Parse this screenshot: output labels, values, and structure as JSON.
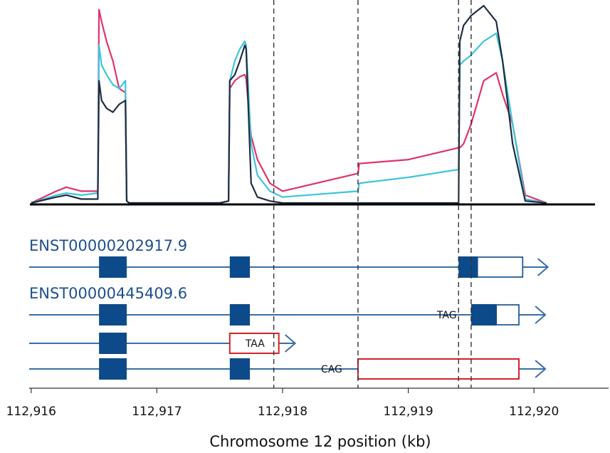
{
  "chart_data": {
    "type": "line",
    "xlabel": "Chromosome 12 position (kb)",
    "xlim": [
      112915.99,
      112920.48
    ],
    "ylim": [
      0,
      100
    ],
    "x_ticks": [
      "112,916",
      "112,917",
      "112,918",
      "112,919",
      "112,920"
    ],
    "x_tick_values": [
      112916,
      112917,
      112918,
      112919,
      112920
    ],
    "colors": {
      "series1": "#1e2d40",
      "series2": "#3ec4dc",
      "series3": "#e0336a",
      "gene": "#3a6ea5",
      "exon": "#0d4a8a",
      "orf": "#d2232a"
    },
    "series": [
      {
        "x": [
          112916,
          112916.2,
          112916.28,
          112916.4,
          112916.53,
          112916.54,
          112916.56,
          112916.6,
          112916.65,
          112916.7,
          112916.75,
          112916.76,
          112916.78,
          112917.5,
          112917.57,
          112917.58,
          112917.62,
          112917.66,
          112917.7,
          112917.71,
          112917.75,
          112917.8,
          112917.9,
          112918,
          112918.6,
          112918.61,
          112919,
          112919.4,
          112919.41,
          112919.44,
          112919.5,
          112919.6,
          112919.7,
          112919.75,
          112919.83,
          112919.93,
          112920.1
        ],
        "y": [
          0,
          3,
          4,
          2,
          2,
          62,
          52,
          48,
          46,
          50,
          52,
          1,
          0,
          0,
          1,
          62,
          65,
          72,
          80,
          78,
          10,
          3,
          1,
          0,
          0,
          0,
          0,
          0,
          82,
          90,
          95,
          100,
          92,
          72,
          30,
          1,
          0
        ]
      },
      {
        "x": [
          112916,
          112916.2,
          112916.28,
          112916.4,
          112916.53,
          112916.54,
          112916.56,
          112916.6,
          112916.65,
          112916.7,
          112916.75,
          112916.76,
          112916.78,
          112917.5,
          112917.57,
          112917.58,
          112917.62,
          112917.66,
          112917.7,
          112917.71,
          112917.75,
          112917.8,
          112917.9,
          112918,
          112918.6,
          112918.61,
          112919,
          112919.4,
          112919.41,
          112919.44,
          112919.5,
          112919.6,
          112919.7,
          112919.75,
          112919.83,
          112919.93,
          112920.1
        ],
        "y": [
          0,
          4,
          5,
          4,
          5,
          80,
          70,
          65,
          60,
          58,
          62,
          1,
          0,
          0,
          1,
          62,
          72,
          78,
          82,
          80,
          30,
          14,
          6,
          3,
          6,
          10,
          13,
          17,
          70,
          72,
          75,
          82,
          86,
          72,
          40,
          2,
          0
        ]
      },
      {
        "x": [
          112916,
          112916.2,
          112916.28,
          112916.4,
          112916.53,
          112916.54,
          112916.56,
          112916.6,
          112916.65,
          112916.7,
          112916.75,
          112916.76,
          112916.78,
          112917.5,
          112917.57,
          112917.58,
          112917.62,
          112917.66,
          112917.7,
          112917.71,
          112917.75,
          112917.8,
          112917.9,
          112918,
          112918.6,
          112918.61,
          112919,
          112919.4,
          112919.41,
          112919.44,
          112919.5,
          112919.6,
          112919.7,
          112919.75,
          112919.83,
          112919.93,
          112920.1
        ],
        "y": [
          0,
          6,
          8,
          6,
          6,
          98,
          92,
          82,
          72,
          58,
          56,
          1,
          0,
          0,
          1,
          58,
          62,
          64,
          65,
          63,
          34,
          22,
          10,
          6,
          15,
          20,
          22,
          28,
          28,
          30,
          40,
          62,
          66,
          55,
          40,
          4,
          0
        ]
      }
    ],
    "cut_lines": [
      112917.93,
      112918.6,
      112919.4,
      112919.5
    ],
    "tracks": [
      {
        "name": "ENST00000202917.9",
        "label": "",
        "line_end": 112920.11,
        "arrow": true,
        "exons": [
          [
            112916.54,
            112916.76
          ],
          [
            112917.58,
            112917.74
          ],
          [
            112919.4,
            112919.55
          ]
        ],
        "utr": [
          [
            112919.55,
            112919.91
          ]
        ],
        "orf_box": null
      },
      {
        "name": "ENST00000445409.6",
        "label": "TAG",
        "line_end": 112920.09,
        "arrow": true,
        "exons": [
          [
            112916.54,
            112916.76
          ],
          [
            112917.58,
            112917.74
          ],
          [
            112919.5,
            112919.7
          ]
        ],
        "utr": [
          [
            112919.7,
            112919.88
          ]
        ],
        "orf_box": null
      },
      {
        "name": "",
        "label": "TAA",
        "line_end": 112918.1,
        "arrow": true,
        "exons": [
          [
            112916.54,
            112916.76
          ]
        ],
        "utr": [],
        "orf_box": [
          112917.58,
          112917.97
        ]
      },
      {
        "name": "",
        "label": "CAG",
        "line_end": 112920.09,
        "arrow": true,
        "exons": [
          [
            112916.54,
            112916.76
          ],
          [
            112917.58,
            112917.74
          ]
        ],
        "utr": [],
        "orf_box": [
          112918.6,
          112919.88
        ]
      }
    ]
  }
}
